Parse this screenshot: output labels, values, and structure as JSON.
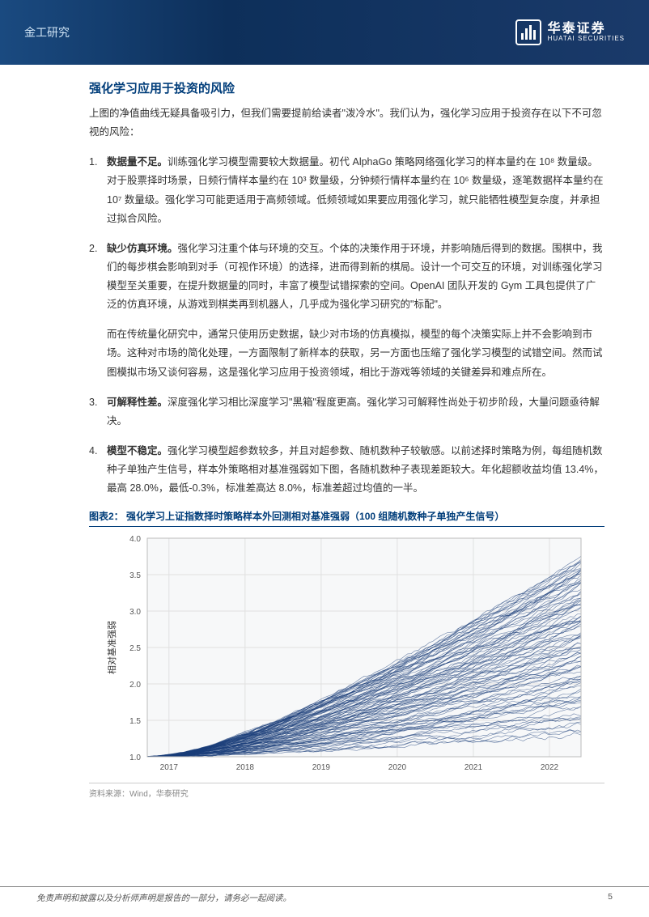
{
  "header": {
    "category": "金工研究",
    "company_cn": "华泰证券",
    "company_en": "HUATAI SECURITIES"
  },
  "section_title": "强化学习应用于投资的风险",
  "intro": "上图的净值曲线无疑具备吸引力，但我们需要提前给读者\"泼冷水\"。我们认为，强化学习应用于投资存在以下不可忽视的风险：",
  "risks": [
    {
      "num": "1.",
      "label": "数据量不足。",
      "text": "训练强化学习模型需要较大数据量。初代 AlphaGo 策略网络强化学习的样本量约在 10⁸ 数量级。对于股票择时场景，日频行情样本量约在 10³ 数量级，分钟频行情样本量约在 10⁶ 数量级，逐笔数据样本量约在 10⁷ 数量级。强化学习可能更适用于高频领域。低频领域如果要应用强化学习，就只能牺牲模型复杂度，并承担过拟合风险。"
    },
    {
      "num": "2.",
      "label": "缺少仿真环境。",
      "text": "强化学习注重个体与环境的交互。个体的决策作用于环境，并影响随后得到的数据。围棋中，我们的每步棋会影响到对手（可视作环境）的选择，进而得到新的棋局。设计一个可交互的环境，对训练强化学习模型至关重要，在提升数据量的同时，丰富了模型试错探索的空间。OpenAI 团队开发的 Gym 工具包提供了广泛的仿真环境，从游戏到棋类再到机器人，几乎成为强化学习研究的\"标配\"。",
      "continue": "而在传统量化研究中，通常只使用历史数据，缺少对市场的仿真模拟，模型的每个决策实际上并不会影响到市场。这种对市场的简化处理，一方面限制了新样本的获取，另一方面也压缩了强化学习模型的试错空间。然而试图模拟市场又谈何容易，这是强化学习应用于投资领域，相比于游戏等领域的关键差异和难点所在。"
    },
    {
      "num": "3.",
      "label": "可解释性差。",
      "text": "深度强化学习相比深度学习\"黑箱\"程度更高。强化学习可解释性尚处于初步阶段，大量问题亟待解决。"
    },
    {
      "num": "4.",
      "label": "模型不稳定。",
      "text": "强化学习模型超参数较多，并且对超参数、随机数种子较敏感。以前述择时策略为例，每组随机数种子单独产生信号，样本外策略相对基准强弱如下图，各随机数种子表现差距较大。年化超额收益均值 13.4%，最高 28.0%，最低-0.3%，标准差高达 8.0%，标准差超过均值的一半。"
    }
  ],
  "chart": {
    "title_prefix": "图表2：",
    "title": "强化学习上证指数择时策略样本外回测相对基准强弱（100 组随机数种子单独产生信号）",
    "type": "line",
    "ylabel": "相对基准强弱",
    "ylim": [
      1.0,
      4.0
    ],
    "yticks": [
      "1.0",
      "1.5",
      "2.0",
      "2.5",
      "3.0",
      "3.5",
      "4.0"
    ],
    "xticks": [
      "2017",
      "2018",
      "2019",
      "2020",
      "2021",
      "2022"
    ],
    "line_color": "#1a3d7a",
    "grid_color": "#e0e0e0",
    "bg_color": "#f7f8f9",
    "series_count": 100,
    "envelope_high_start": 1.0,
    "envelope_high_end": 4.0,
    "envelope_low_start": 1.0,
    "envelope_low_end": 1.3,
    "ylabel_fontsize": 11,
    "tick_fontsize": 10
  },
  "chart_source": "资料来源：Wind，华泰研究",
  "footer": {
    "disclaimer": "免责声明和披露以及分析师声明是报告的一部分，请务必一起阅读。",
    "page": "5"
  }
}
